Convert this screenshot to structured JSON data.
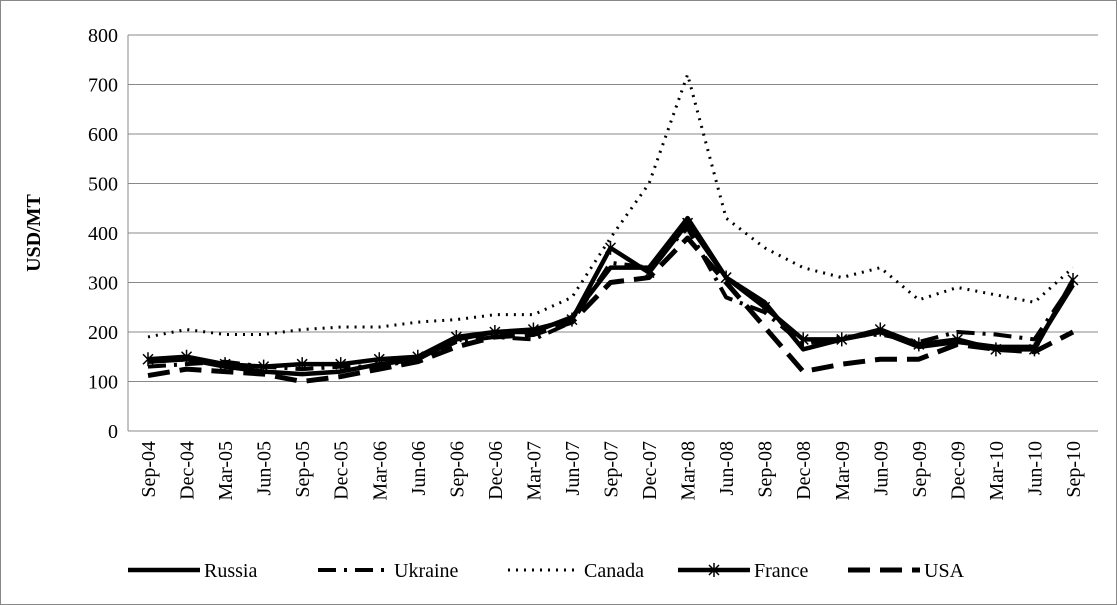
{
  "chart_data": {
    "type": "line",
    "y_label": "USD/MT",
    "categories": [
      "Sep-04",
      "Dec-04",
      "Mar-05",
      "Jun-05",
      "Sep-05",
      "Dec-05",
      "Mar-06",
      "Jun-06",
      "Sep-06",
      "Dec-06",
      "Mar-07",
      "Jun-07",
      "Sep-07",
      "Dec-07",
      "Mar-08",
      "Jun-08",
      "Sep-08",
      "Dec-08",
      "Mar-09",
      "Jun-09",
      "Sep-09",
      "Dec-09",
      "Mar-10",
      "Jun-10",
      "Sep-10"
    ],
    "series": [
      {
        "name": "Russia",
        "color": "#000000",
        "style": "solid",
        "values": [
          140,
          145,
          130,
          120,
          115,
          120,
          135,
          145,
          185,
          200,
          200,
          230,
          330,
          330,
          430,
          310,
          260,
          165,
          185,
          200,
          170,
          180,
          170,
          170,
          295
        ]
      },
      {
        "name": "Ukraine",
        "color": "#000000",
        "style": "dash-dot",
        "values": [
          130,
          135,
          140,
          130,
          125,
          130,
          130,
          145,
          180,
          190,
          185,
          220,
          340,
          330,
          410,
          270,
          240,
          175,
          190,
          195,
          180,
          200,
          195,
          185,
          300
        ]
      },
      {
        "name": "Canada",
        "color": "#000000",
        "style": "dot",
        "values": [
          190,
          205,
          195,
          195,
          205,
          210,
          210,
          220,
          225,
          235,
          235,
          270,
          390,
          500,
          720,
          430,
          370,
          330,
          310,
          330,
          265,
          290,
          275,
          260,
          330
        ]
      },
      {
        "name": "France",
        "color": "#000000",
        "style": "star",
        "values": [
          145,
          150,
          135,
          130,
          135,
          135,
          145,
          150,
          190,
          200,
          205,
          225,
          370,
          320,
          420,
          310,
          250,
          185,
          185,
          205,
          175,
          185,
          165,
          165,
          305
        ]
      },
      {
        "name": "USA",
        "color": "#000000",
        "style": "dash",
        "values": [
          112,
          125,
          120,
          115,
          100,
          110,
          125,
          140,
          170,
          190,
          195,
          220,
          300,
          310,
          390,
          300,
          210,
          120,
          135,
          145,
          145,
          175,
          165,
          160,
          200
        ]
      }
    ],
    "ylim": [
      0,
      800
    ],
    "yticks": [
      0,
      100,
      200,
      300,
      400,
      500,
      600,
      700,
      800
    ],
    "grid": true,
    "legend": "bottom"
  }
}
